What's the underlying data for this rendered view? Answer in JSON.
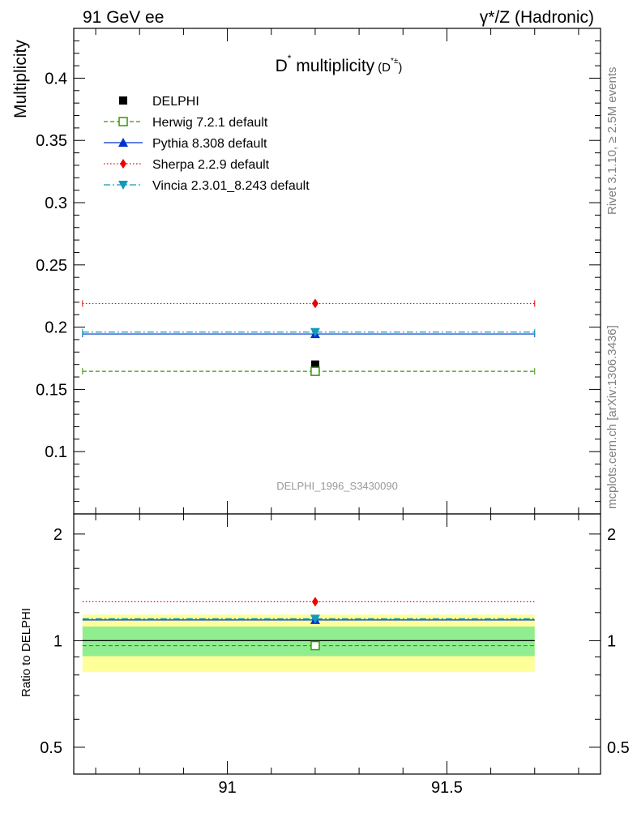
{
  "header": {
    "left": "91 GeV ee",
    "right": "γ*/Z (Hadronic)"
  },
  "side_text": {
    "rivet": "Rivet 3.1.10, ≥ 2.5M events",
    "mcplots": "mcplots.cern.ch [arXiv:1306.3436]"
  },
  "colors": {
    "data": "#000000",
    "herwig": "#339900",
    "pythia": "#0033cc",
    "sherpa": "#ee0000",
    "vincia": "#1199bb",
    "band_inner": "#90ee90",
    "band_outer": "#ffff99"
  },
  "chart_data": [
    {
      "type": "scatter",
      "title": "D* multiplicity (D*±)",
      "title_main": "D",
      "title_sup": "*",
      "title_rest": " multiplicity",
      "title_paren_open": "(D",
      "title_paren_sup": "*±",
      "title_paren_close": ")",
      "ylabel": "Multiplicity",
      "watermark": "DELPHI_1996_S3430090",
      "xlim": [
        90.65,
        91.85
      ],
      "ylim": [
        0.05,
        0.44
      ],
      "y_ticks": [
        0.1,
        0.15,
        0.2,
        0.25,
        0.3,
        0.35,
        0.4
      ],
      "y_tick_labels": [
        "0.1",
        "0.15",
        "0.2",
        "0.25",
        "0.3",
        "0.35",
        "0.4"
      ],
      "x_range": [
        90.67,
        91.7
      ],
      "x_center": 91.2,
      "legend_position": "top-left",
      "series": [
        {
          "name": "DELPHI",
          "key": "data",
          "value": 0.17,
          "marker": "square"
        },
        {
          "name": "Herwig 7.2.1 default",
          "key": "herwig",
          "value": 0.1645,
          "marker": "open-square",
          "line": "dashed"
        },
        {
          "name": "Pythia 8.308 default",
          "key": "pythia",
          "value": 0.1945,
          "marker": "triangle-up",
          "line": "solid"
        },
        {
          "name": "Sherpa 2.2.9 default",
          "key": "sherpa",
          "value": 0.219,
          "marker": "diamond",
          "line": "dotted"
        },
        {
          "name": "Vincia 2.3.01_8.243 default",
          "key": "vincia",
          "value": 0.196,
          "marker": "triangle-down",
          "line": "dashdot"
        }
      ]
    },
    {
      "type": "scatter",
      "ylabel": "Ratio to DELPHI",
      "xlim": [
        90.65,
        91.85
      ],
      "ylim": [
        0.42,
        2.28
      ],
      "y_ticks": [
        0.5,
        1,
        2
      ],
      "y_tick_labels": [
        "0.5",
        "1",
        "2"
      ],
      "x_ticks": [
        91,
        91.5
      ],
      "x_tick_labels": [
        "91",
        "91.5"
      ],
      "band_inner": [
        0.904,
        1.096
      ],
      "band_outer": [
        0.815,
        1.185
      ],
      "series": [
        {
          "name": "Herwig 7.2.1 default",
          "key": "herwig",
          "value": 0.968
        },
        {
          "name": "Pythia 8.308 default",
          "key": "pythia",
          "value": 1.144
        },
        {
          "name": "Sherpa 2.2.9 default",
          "key": "sherpa",
          "value": 1.288
        },
        {
          "name": "Vincia 2.3.01_8.243 default",
          "key": "vincia",
          "value": 1.153
        }
      ]
    }
  ]
}
